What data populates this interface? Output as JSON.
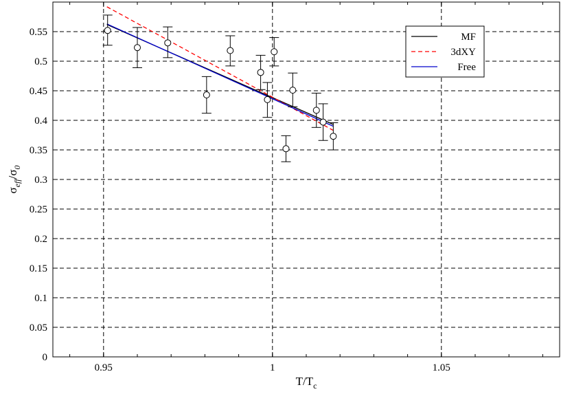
{
  "chart_data": {
    "type": "scatter",
    "title": "",
    "xlabel_main": "T/T",
    "xlabel_sub": "c",
    "ylabel_main": "σ",
    "ylabel_sub": "eff",
    "ylabel_slash": "/σ",
    "ylabel_sub2": "0",
    "xlim": [
      0.935,
      1.085
    ],
    "ylim": [
      0,
      0.6
    ],
    "grid": true,
    "legend_position": "top-right",
    "x_ticks": [
      {
        "value": 0.95,
        "label": "0.95"
      },
      {
        "value": 1.0,
        "label": "1"
      },
      {
        "value": 1.05,
        "label": "1.05"
      }
    ],
    "y_ticks": [
      {
        "value": 0,
        "label": "0"
      },
      {
        "value": 0.05,
        "label": "0.05"
      },
      {
        "value": 0.1,
        "label": "0.1"
      },
      {
        "value": 0.15,
        "label": "0.15"
      },
      {
        "value": 0.2,
        "label": "0.2"
      },
      {
        "value": 0.25,
        "label": "0.25"
      },
      {
        "value": 0.3,
        "label": "0.3"
      },
      {
        "value": 0.35,
        "label": "0.35"
      },
      {
        "value": 0.4,
        "label": "0.4"
      },
      {
        "value": 0.45,
        "label": "0.45"
      },
      {
        "value": 0.5,
        "label": "0.5"
      },
      {
        "value": 0.55,
        "label": "0.55"
      }
    ],
    "points": [
      {
        "x": 0.9512,
        "y": 0.552,
        "ylow": 0.527,
        "yhigh": 0.578
      },
      {
        "x": 0.96,
        "y": 0.523,
        "ylow": 0.489,
        "yhigh": 0.557
      },
      {
        "x": 0.969,
        "y": 0.531,
        "ylow": 0.506,
        "yhigh": 0.558
      },
      {
        "x": 0.9805,
        "y": 0.443,
        "ylow": 0.412,
        "yhigh": 0.474
      },
      {
        "x": 0.9875,
        "y": 0.518,
        "ylow": 0.492,
        "yhigh": 0.543
      },
      {
        "x": 0.9965,
        "y": 0.481,
        "ylow": 0.452,
        "yhigh": 0.51
      },
      {
        "x": 0.9985,
        "y": 0.435,
        "ylow": 0.405,
        "yhigh": 0.464
      },
      {
        "x": 1.0005,
        "y": 0.516,
        "ylow": 0.492,
        "yhigh": 0.54
      },
      {
        "x": 1.004,
        "y": 0.352,
        "ylow": 0.33,
        "yhigh": 0.374
      },
      {
        "x": 1.006,
        "y": 0.451,
        "ylow": 0.423,
        "yhigh": 0.48
      },
      {
        "x": 1.013,
        "y": 0.417,
        "ylow": 0.388,
        "yhigh": 0.446
      },
      {
        "x": 1.015,
        "y": 0.397,
        "ylow": 0.366,
        "yhigh": 0.428
      },
      {
        "x": 1.018,
        "y": 0.373,
        "ylow": 0.35,
        "yhigh": 0.396
      }
    ],
    "series": [
      {
        "name": "MF",
        "color": "#000000",
        "dash": "",
        "x": [
          0.951,
          1.018
        ],
        "y": [
          0.562,
          0.393
        ]
      },
      {
        "name": "3dXY",
        "color": "#ff0000",
        "dash": "6 4",
        "x": [
          0.951,
          1.018
        ],
        "y": [
          0.592,
          0.383
        ]
      },
      {
        "name": "Free",
        "color": "#0000cc",
        "dash": "",
        "x": [
          0.951,
          1.018
        ],
        "y": [
          0.563,
          0.39
        ]
      }
    ]
  }
}
